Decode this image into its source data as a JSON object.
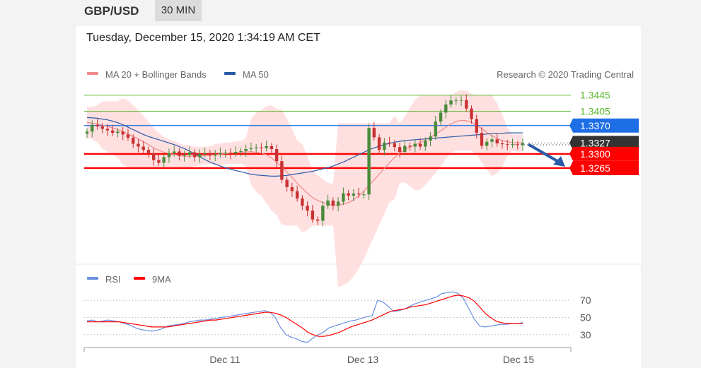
{
  "header": {
    "symbol": "GBP/USD",
    "timeframe": "30 MIN"
  },
  "subheader": {
    "datetime": "Tuesday, December 15, 2020 1:34:19 AM CET"
  },
  "price_legend": {
    "ma20_label": "MA 20 + Bollinger Bands",
    "ma50_label": "MA 50",
    "ma20_color": "#f08a8a",
    "ma50_color": "#2a5aa8",
    "credit": "Research © 2020 Trading Central"
  },
  "rsi_legend": {
    "rsi_label": "RSI",
    "ma9_label": "9MA",
    "rsi_color": "#6a8fe0",
    "ma9_color": "#ff0000"
  },
  "levels": {
    "resistance2": "1.3445",
    "resistance1": "1.3405",
    "pivot": "1.3370",
    "last": "1.3327",
    "support1": "1.3300",
    "support2": "1.3265"
  },
  "colors": {
    "resistance": "#5cb82e",
    "pivot": "#1e6ee6",
    "last": "#333333",
    "support": "#ff0000",
    "band_fill": "#ffd6d6",
    "candle_up": "#4a8a3a",
    "candle_down": "#c83232",
    "arrow": "#2a5aa8"
  },
  "chart_data": [
    {
      "type": "candlestick",
      "title": "GBP/USD",
      "yticks": [
        "1.3445",
        "1.3405",
        "1.3370",
        "1.3327",
        "1.3300",
        "1.3265"
      ],
      "ylim": [
        1.304,
        1.3462
      ],
      "x_ticks": [
        "Dec 11",
        "Dec 13",
        "Dec 15"
      ],
      "close": [
        1.3355,
        1.3372,
        1.3368,
        1.3362,
        1.3358,
        1.3352,
        1.3355,
        1.3348,
        1.334,
        1.3325,
        1.3318,
        1.331,
        1.3302,
        1.3285,
        1.3278,
        1.3292,
        1.3302,
        1.3306,
        1.3295,
        1.3297,
        1.3304,
        1.3292,
        1.33,
        1.3302,
        1.3296,
        1.3299,
        1.3302,
        1.3303,
        1.3301,
        1.3305,
        1.3307,
        1.3312,
        1.3314,
        1.3316,
        1.3314,
        1.3319,
        1.3312,
        1.3282,
        1.3236,
        1.3218,
        1.3208,
        1.319,
        1.3172,
        1.316,
        1.3138,
        1.3135,
        1.3172,
        1.3185,
        1.3172,
        1.3182,
        1.3203,
        1.3197,
        1.3202,
        1.32,
        1.32,
        1.3364,
        1.3341,
        1.331,
        1.3328,
        1.3326,
        1.3317,
        1.3305,
        1.332,
        1.3318,
        1.3325,
        1.3318,
        1.3333,
        1.3343,
        1.338,
        1.3402,
        1.3422,
        1.3432,
        1.3432,
        1.3433,
        1.3412,
        1.3386,
        1.3352,
        1.332,
        1.333,
        1.3336,
        1.3326,
        1.3324,
        1.3323,
        1.3324,
        1.3322,
        1.3327
      ],
      "series": [
        {
          "name": "MA 20 + Bollinger Bands",
          "values": [
            1.3378,
            1.3376,
            1.3374,
            1.3371,
            1.3368,
            1.3364,
            1.336,
            1.3355,
            1.3349,
            1.3343,
            1.3337,
            1.333,
            1.3323,
            1.3315,
            1.3309,
            1.3304,
            1.3301,
            1.3299,
            1.3296,
            1.3294,
            1.3294,
            1.3294,
            1.3295,
            1.3296,
            1.3297,
            1.3298,
            1.3299,
            1.3301,
            1.3302,
            1.3303,
            1.3304,
            1.3305,
            1.3305,
            1.3304,
            1.3302,
            1.3298,
            1.329,
            1.328,
            1.3268,
            1.3255,
            1.3242,
            1.3228,
            1.3215,
            1.3203,
            1.3192,
            1.3185,
            1.318,
            1.3176,
            1.3174,
            1.3173,
            1.3176,
            1.318,
            1.3187,
            1.3196,
            1.3208,
            1.3222,
            1.3236,
            1.325,
            1.3264,
            1.3278,
            1.3291,
            1.3302,
            1.3311,
            1.3317,
            1.3322,
            1.3328,
            1.3334,
            1.3341,
            1.3349,
            1.3357,
            1.3366,
            1.3374,
            1.338,
            1.3383,
            1.3382,
            1.3378,
            1.3371,
            1.3362,
            1.3353,
            1.3345,
            1.3338,
            1.3333,
            1.333,
            1.3328,
            1.3327,
            1.3327
          ]
        },
        {
          "name": "MA 50",
          "values": [
            1.339,
            1.3389,
            1.3388,
            1.3386,
            1.3384,
            1.3381,
            1.3377,
            1.3372,
            1.3366,
            1.336,
            1.3354,
            1.3348,
            1.3343,
            1.3339,
            1.3335,
            1.3331,
            1.3327,
            1.3323,
            1.3318,
            1.3313,
            1.3307,
            1.33,
            1.3293,
            1.3286,
            1.328,
            1.3275,
            1.327,
            1.3266,
            1.3262,
            1.3259,
            1.3256,
            1.3253,
            1.325,
            1.3248,
            1.3247,
            1.3246,
            1.3245,
            1.3245,
            1.3246,
            1.3247,
            1.3249,
            1.3251,
            1.3253,
            1.3255,
            1.3257,
            1.326,
            1.3263,
            1.3266,
            1.327,
            1.3275,
            1.328,
            1.3286,
            1.3292,
            1.3298,
            1.3304,
            1.331,
            1.3315,
            1.3319,
            1.3323,
            1.3326,
            1.3329,
            1.3331,
            1.3333,
            1.3334,
            1.3335,
            1.3336,
            1.3337,
            1.3338,
            1.3339,
            1.334,
            1.3341,
            1.3342,
            1.3343,
            1.3344,
            1.3345,
            1.3346,
            1.3347,
            1.3348,
            1.3349,
            1.335,
            1.3351,
            1.3351,
            1.3352,
            1.3352,
            1.3352,
            1.3352
          ]
        }
      ]
    },
    {
      "type": "line",
      "title": "RSI",
      "yticks": [
        70,
        50,
        30
      ],
      "ylim": [
        15,
        85
      ],
      "x_ticks": [
        "Dec 11",
        "Dec 13",
        "Dec 15"
      ],
      "series": [
        {
          "name": "RSI",
          "values": [
            46,
            47,
            45,
            46,
            47,
            46,
            45,
            43,
            41,
            38,
            36,
            35,
            34,
            35,
            37,
            40,
            41,
            42,
            43,
            45,
            46,
            47,
            47,
            48,
            49,
            50,
            51,
            52,
            53,
            54,
            55,
            56,
            57,
            58,
            56,
            50,
            38,
            30,
            27,
            25,
            22,
            21,
            26,
            30,
            33,
            38,
            40,
            42,
            44,
            46,
            47,
            49,
            51,
            52,
            70,
            68,
            63,
            57,
            58,
            60,
            63,
            66,
            68,
            70,
            72,
            74,
            78,
            79,
            80,
            78,
            72,
            60,
            48,
            40,
            39,
            40,
            41,
            42,
            42,
            43,
            43,
            44
          ]
        },
        {
          "name": "9MA",
          "values": [
            45,
            45,
            45,
            45,
            45,
            45,
            45,
            44,
            43,
            42,
            41,
            40,
            39,
            39,
            39,
            39,
            40,
            41,
            42,
            43,
            44,
            45,
            46,
            47,
            47,
            48,
            49,
            50,
            51,
            52,
            53,
            54,
            55,
            56,
            56,
            55,
            53,
            50,
            46,
            42,
            38,
            33,
            30,
            28,
            28,
            29,
            31,
            33,
            36,
            39,
            41,
            43,
            45,
            47,
            50,
            53,
            56,
            58,
            59,
            60,
            62,
            63,
            64,
            65,
            67,
            69,
            71,
            73,
            75,
            76,
            75,
            73,
            69,
            62,
            55,
            50,
            46,
            44,
            43,
            43,
            43,
            43
          ]
        }
      ]
    }
  ]
}
